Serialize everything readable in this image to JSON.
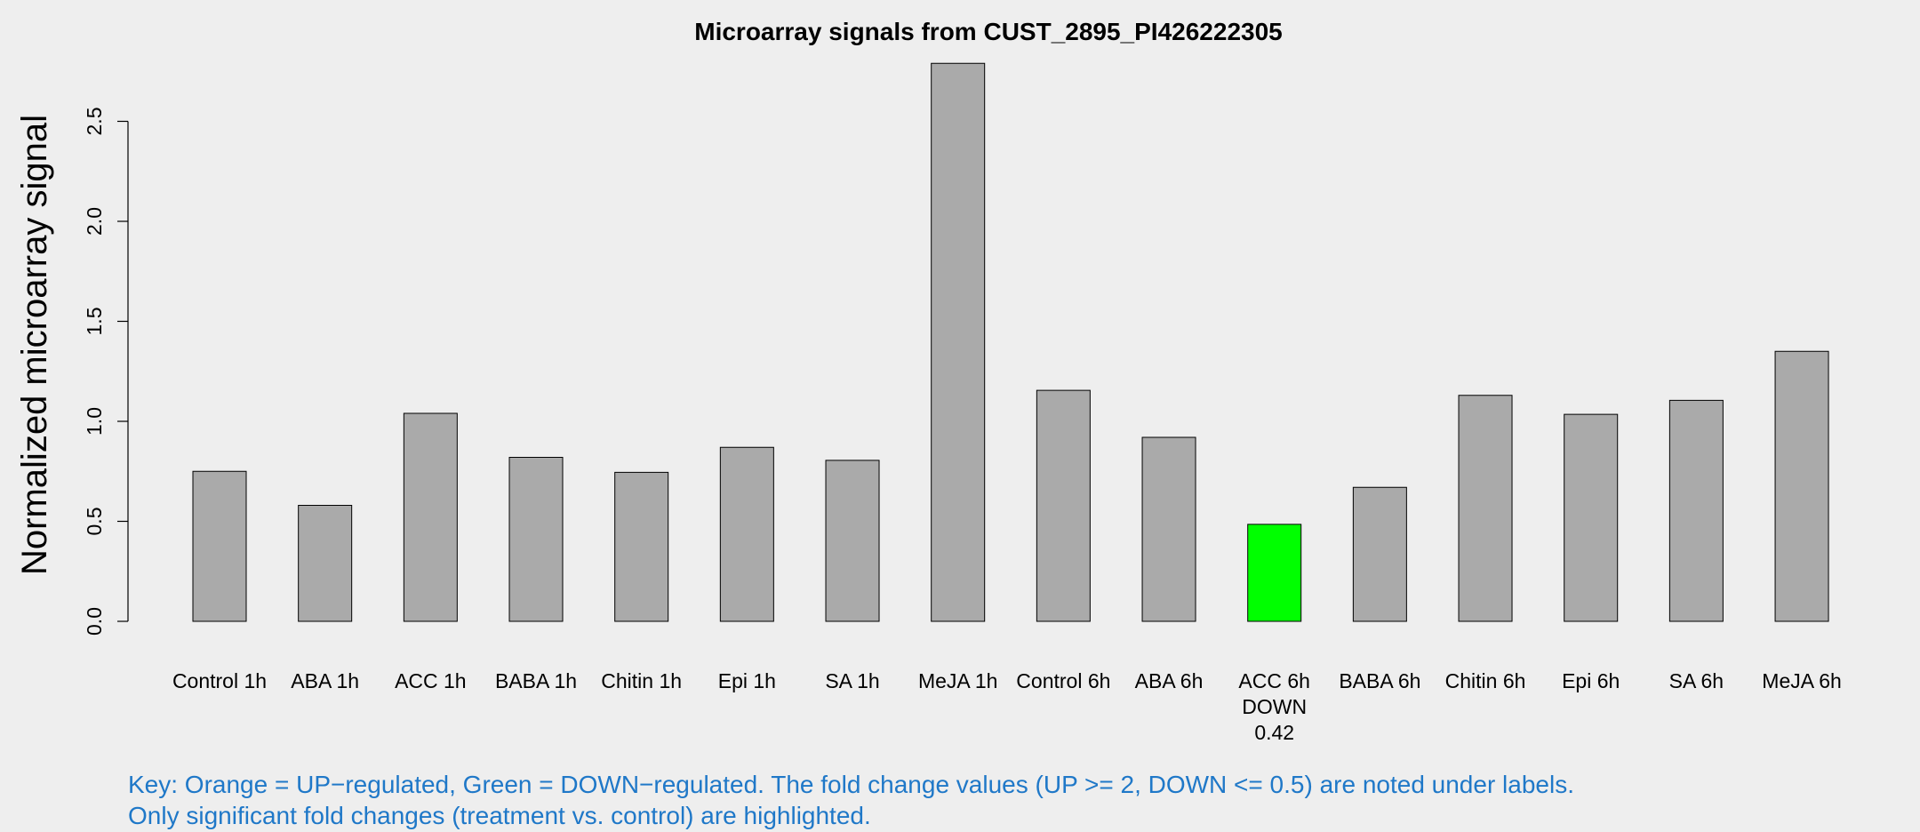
{
  "chart_data": {
    "type": "bar",
    "title": "Microarray signals from CUST_2895_PI426222305",
    "xlabel": "",
    "ylabel": "Normalized microarray signal",
    "ylim": [
      0,
      2.8
    ],
    "yticks": [
      "0.0",
      "0.5",
      "1.0",
      "1.5",
      "2.0",
      "2.5"
    ],
    "categories": [
      "Control 1h",
      "ABA 1h",
      "ACC 1h",
      "BABA 1h",
      "Chitin 1h",
      "Epi 1h",
      "SA 1h",
      "MeJA 1h",
      "Control 6h",
      "ABA 6h",
      "ACC 6h",
      "BABA 6h",
      "Chitin 6h",
      "Epi 6h",
      "SA 6h",
      "MeJA 6h"
    ],
    "values": [
      0.75,
      0.58,
      1.04,
      0.82,
      0.745,
      0.87,
      0.805,
      2.79,
      1.155,
      0.92,
      0.485,
      0.67,
      1.13,
      1.035,
      1.105,
      1.35
    ],
    "bar_colors": [
      "#aaaaaa",
      "#aaaaaa",
      "#aaaaaa",
      "#aaaaaa",
      "#aaaaaa",
      "#aaaaaa",
      "#aaaaaa",
      "#aaaaaa",
      "#aaaaaa",
      "#aaaaaa",
      "#00ff00",
      "#aaaaaa",
      "#aaaaaa",
      "#aaaaaa",
      "#aaaaaa",
      "#aaaaaa"
    ],
    "annotations": [
      {
        "category": "ACC 6h",
        "lines": [
          "DOWN",
          "0.42"
        ]
      }
    ],
    "grid": false,
    "legend": "none"
  },
  "key": {
    "line1": "Key: Orange = UP−regulated, Green = DOWN−regulated. The fold change values (UP >= 2, DOWN <= 0.5) are noted under labels.",
    "line2": "Only significant fold changes (treatment vs. control) are highlighted.",
    "color": "#1f78c8"
  }
}
